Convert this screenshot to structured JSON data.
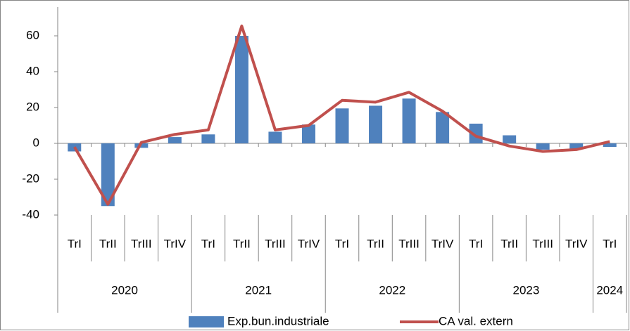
{
  "chart_data": {
    "type": "bar-line",
    "categories": [
      [
        "TrI",
        "2020"
      ],
      [
        "TrII",
        "2020"
      ],
      [
        "TrIII",
        "2020"
      ],
      [
        "TrIV",
        "2020"
      ],
      [
        "TrI",
        "2021"
      ],
      [
        "TrII",
        "2021"
      ],
      [
        "TrIII",
        "2021"
      ],
      [
        "TrIV",
        "2021"
      ],
      [
        "TrI",
        "2022"
      ],
      [
        "TrII",
        "2022"
      ],
      [
        "TrIII",
        "2022"
      ],
      [
        "TrIV",
        "2022"
      ],
      [
        "TrI",
        "2023"
      ],
      [
        "TrII",
        "2023"
      ],
      [
        "TrIII",
        "2023"
      ],
      [
        "TrIV",
        "2023"
      ],
      [
        "TrI",
        "2024"
      ]
    ],
    "series": [
      {
        "name": "Exp.bun.industriale",
        "type": "bar",
        "color": "#4f81bd",
        "values": [
          -4.5,
          -35,
          -2.5,
          3.5,
          5,
          60,
          6.5,
          10.5,
          19.5,
          21,
          25,
          17.5,
          11,
          4.5,
          -3.5,
          -3,
          -2
        ]
      },
      {
        "name": "CA val. extern",
        "type": "line",
        "color": "#c0504d",
        "values": [
          -2,
          -34,
          0.5,
          5,
          7.5,
          65.5,
          7.5,
          10,
          24,
          23,
          28.5,
          18,
          4,
          -1.5,
          -4.5,
          -3.5,
          1
        ]
      }
    ],
    "ylim": [
      -40,
      70
    ],
    "yticks": [
      -40,
      -20,
      0,
      20,
      40,
      60
    ],
    "legend": "bottom"
  }
}
